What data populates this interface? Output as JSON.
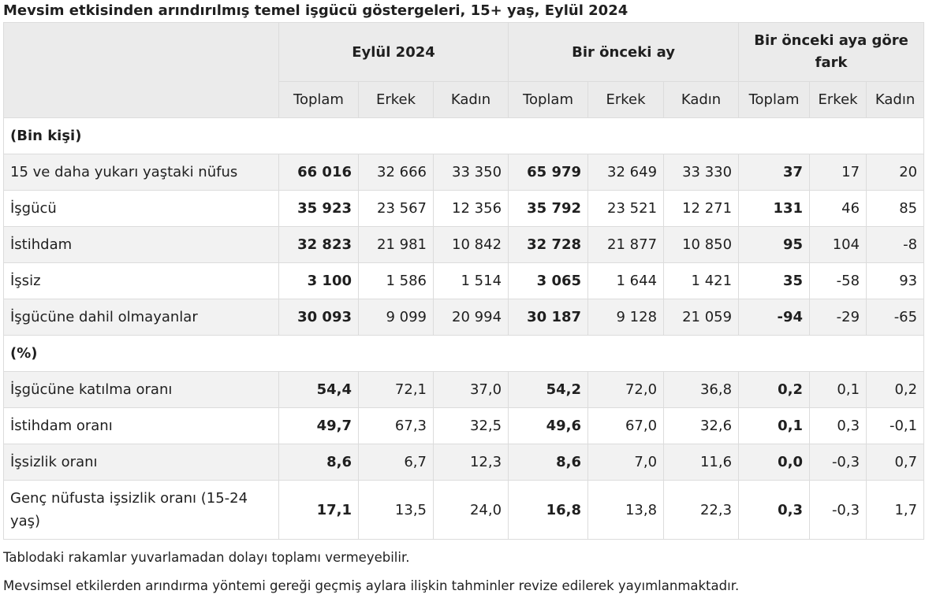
{
  "title": "Mevsim etkisinden arındırılmış temel işgücü göstergeleri, 15+ yaş, Eylül 2024",
  "header": {
    "groups": [
      "Eylül 2024",
      "Bir önceki ay",
      "Bir önceki aya göre fark"
    ],
    "subcolumns": [
      "Toplam",
      "Erkek",
      "Kadın"
    ]
  },
  "sections": [
    {
      "title": "(Bin kişi)",
      "rows": [
        {
          "label": "15 ve daha yukarı yaştaki nüfus",
          "values": [
            "66 016",
            "32 666",
            "33 350",
            "65 979",
            "32 649",
            "33 330",
            "37",
            "17",
            "20"
          ]
        },
        {
          "label": "İşgücü",
          "values": [
            "35 923",
            "23 567",
            "12 356",
            "35 792",
            "23 521",
            "12 271",
            "131",
            "46",
            "85"
          ]
        },
        {
          "label": "İstihdam",
          "values": [
            "32 823",
            "21 981",
            "10 842",
            "32 728",
            "21 877",
            "10 850",
            "95",
            "104",
            "-8"
          ]
        },
        {
          "label": "İşsiz",
          "values": [
            "3 100",
            "1 586",
            "1 514",
            "3 065",
            "1 644",
            "1 421",
            "35",
            "-58",
            "93"
          ]
        },
        {
          "label": "İşgücüne dahil olmayanlar",
          "values": [
            "30 093",
            "9 099",
            "20 994",
            "30 187",
            "9 128",
            "21 059",
            "-94",
            "-29",
            "-65"
          ]
        }
      ]
    },
    {
      "title": "(%)",
      "rows": [
        {
          "label": "İşgücüne katılma oranı",
          "values": [
            "54,4",
            "72,1",
            "37,0",
            "54,2",
            "72,0",
            "36,8",
            "0,2",
            "0,1",
            "0,2"
          ]
        },
        {
          "label": "İstihdam oranı",
          "values": [
            "49,7",
            "67,3",
            "32,5",
            "49,6",
            "67,0",
            "32,6",
            "0,1",
            "0,3",
            "-0,1"
          ]
        },
        {
          "label": "İşsizlik oranı",
          "values": [
            "8,6",
            "6,7",
            "12,3",
            "8,6",
            "7,0",
            "11,6",
            "0,0",
            "-0,3",
            "0,7"
          ]
        },
        {
          "label": "Genç nüfusta işsizlik oranı (15-24 yaş)",
          "values": [
            "17,1",
            "13,5",
            "24,0",
            "16,8",
            "13,8",
            "22,3",
            "0,3",
            "-0,3",
            "1,7"
          ]
        }
      ]
    }
  ],
  "notes": [
    "Tablodaki rakamlar yuvarlamadan dolayı toplamı vermeyebilir.",
    "Mevsimsel etkilerden arındırma yöntemi gereği geçmiş aylara ilişkin tahminler revize edilerek yayımlanmaktadır."
  ]
}
